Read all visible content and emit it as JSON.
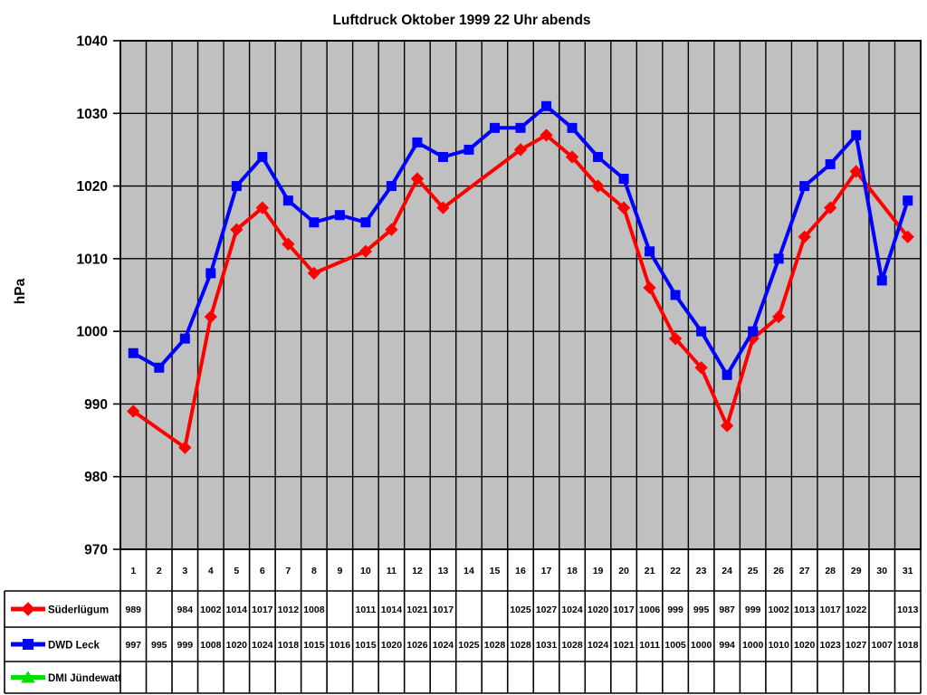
{
  "chart_data": {
    "type": "line",
    "title": "Luftdruck Oktober 1999 22 Uhr abends",
    "xlabel": "",
    "ylabel": "hPa",
    "ylim": [
      970,
      1040
    ],
    "ytick_step": 10,
    "yticks": [
      1040,
      1030,
      1020,
      1010,
      1000,
      990,
      980,
      970
    ],
    "grid": "both",
    "plot_background_color": "#c0c0c0",
    "gridline_color": "#000000",
    "axis_color": "#000000",
    "legend_position": "bottom-left table",
    "categories": [
      1,
      2,
      3,
      4,
      5,
      6,
      7,
      8,
      9,
      10,
      11,
      12,
      13,
      14,
      15,
      16,
      17,
      18,
      19,
      20,
      21,
      22,
      23,
      24,
      25,
      26,
      27,
      28,
      29,
      30,
      31
    ],
    "series": [
      {
        "name": "Süderlügum",
        "color": "#ff0000",
        "marker": "diamond",
        "values": [
          989,
          null,
          984,
          1002,
          1014,
          1017,
          1012,
          1008,
          null,
          1011,
          1014,
          1021,
          1017,
          null,
          null,
          1025,
          1027,
          1024,
          1020,
          1017,
          1006,
          999,
          995,
          987,
          999,
          1002,
          1013,
          1017,
          1022,
          null,
          1013
        ]
      },
      {
        "name": "DWD Leck",
        "color": "#0000ff",
        "marker": "square",
        "values": [
          997,
          995,
          999,
          1008,
          1020,
          1024,
          1018,
          1015,
          1016,
          1015,
          1020,
          1026,
          1024,
          1025,
          1028,
          1028,
          1031,
          1028,
          1024,
          1021,
          1011,
          1005,
          1000,
          994,
          1000,
          1010,
          1020,
          1023,
          1027,
          1007,
          1018
        ]
      },
      {
        "name": "DMI Jündewatt",
        "color": "#00e000",
        "marker": "triangle",
        "values": [
          null,
          null,
          null,
          null,
          null,
          null,
          null,
          null,
          null,
          null,
          null,
          null,
          null,
          null,
          null,
          null,
          null,
          null,
          null,
          null,
          null,
          null,
          null,
          null,
          null,
          null,
          null,
          null,
          null,
          null,
          null
        ]
      }
    ]
  }
}
